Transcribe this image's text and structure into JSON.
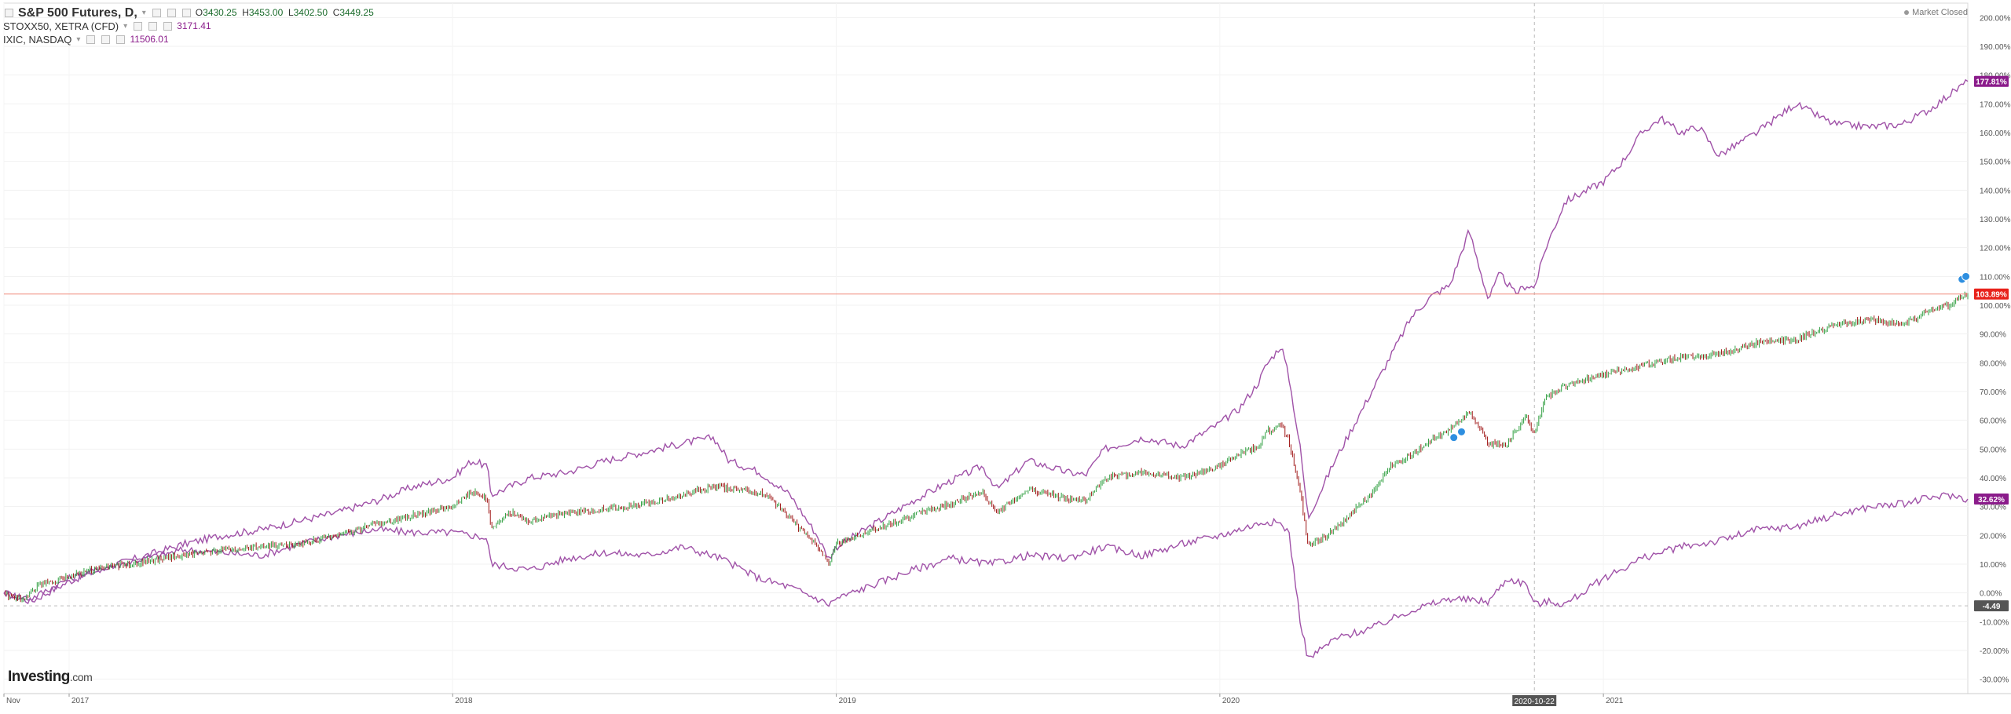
{
  "legend": {
    "main": {
      "symbol": "S&P 500 Futures, D,",
      "open_label": "O",
      "open": "3430.25",
      "high_label": "H",
      "high": "3453.00",
      "low_label": "L",
      "low": "3402.50",
      "close_label": "C",
      "close": "3449.25"
    },
    "comparisons": [
      {
        "symbol": "STOXX50, XETRA (CFD)",
        "value": "3171.41"
      },
      {
        "symbol": "IXIC, NASDAQ",
        "value": "11506.01"
      }
    ]
  },
  "market_status": "Market Closed",
  "brand": {
    "name": "Investing",
    "suffix": ".com"
  },
  "badges": {
    "ixic": "177.81%",
    "spx": "103.89%",
    "stoxx": "32.62%",
    "crosshair_y": "-4.49",
    "crosshair_x": "2020-10-22"
  },
  "colors": {
    "spx_up": "#2e9e3e",
    "spx_down": "#a01818",
    "compare": "#a052a8",
    "price_line": "#f08a7a",
    "badge_spx": "#e8221b",
    "badge_compare": "#8b1c8b"
  },
  "chart_data": {
    "type": "line",
    "yaxis_unit": "%",
    "ylim": [
      -35,
      205
    ],
    "ytick_labels": [
      "200.00%",
      "190.00%",
      "180.00%",
      "170.00%",
      "160.00%",
      "150.00%",
      "140.00%",
      "130.00%",
      "120.00%",
      "110.00%",
      "100.00%",
      "90.00%",
      "80.00%",
      "70.00%",
      "60.00%",
      "50.00%",
      "40.00%",
      "30.00%",
      "20.00%",
      "10.00%",
      "0.00%",
      "-10.00%",
      "-20.00%",
      "-30.00%"
    ],
    "ytick_values": [
      200,
      190,
      180,
      170,
      160,
      150,
      140,
      130,
      120,
      110,
      100,
      90,
      80,
      70,
      60,
      50,
      40,
      30,
      20,
      10,
      0,
      -10,
      -20,
      -30
    ],
    "xtick_labels": [
      {
        "label": "Nov",
        "x": 2016.83
      },
      {
        "label": "2017",
        "x": 2017.0
      },
      {
        "label": "2018",
        "x": 2018.0
      },
      {
        "label": "2019",
        "x": 2019.0
      },
      {
        "label": "2020",
        "x": 2020.0
      },
      {
        "label": "2021",
        "x": 2021.0
      }
    ],
    "xlim": [
      2016.83,
      2021.95
    ],
    "series": [
      {
        "label": "S&P 500 Futures",
        "style": "candles",
        "x": [
          2016.83,
          2016.88,
          2016.92,
          2016.96,
          2017.0,
          2017.1,
          2017.2,
          2017.3,
          2017.4,
          2017.5,
          2017.6,
          2017.7,
          2017.8,
          2017.9,
          2018.0,
          2018.05,
          2018.09,
          2018.1,
          2018.15,
          2018.2,
          2018.3,
          2018.4,
          2018.5,
          2018.6,
          2018.68,
          2018.75,
          2018.82,
          2018.88,
          2018.95,
          2018.98,
          2019.0,
          2019.1,
          2019.2,
          2019.3,
          2019.38,
          2019.42,
          2019.5,
          2019.6,
          2019.65,
          2019.7,
          2019.8,
          2019.9,
          2020.0,
          2020.05,
          2020.1,
          2020.12,
          2020.16,
          2020.18,
          2020.21,
          2020.23,
          2020.3,
          2020.4,
          2020.45,
          2020.5,
          2020.55,
          2020.6,
          2020.65,
          2020.7,
          2020.75,
          2020.8,
          2020.82,
          2020.85,
          2020.9,
          2021.0,
          2021.1,
          2021.2,
          2021.3,
          2021.4,
          2021.5,
          2021.6,
          2021.7,
          2021.78,
          2021.85,
          2021.9,
          2021.95
        ],
        "y": [
          0,
          -3,
          3,
          4,
          6,
          9,
          11,
          13,
          15,
          16,
          17,
          20,
          24,
          27,
          30,
          35,
          33,
          22,
          28,
          25,
          28,
          29,
          31,
          34,
          37,
          36,
          34,
          26,
          16,
          10,
          17,
          22,
          27,
          31,
          35,
          28,
          36,
          33,
          32,
          40,
          42,
          40,
          44,
          48,
          51,
          56,
          58,
          53,
          35,
          16,
          22,
          35,
          45,
          48,
          53,
          57,
          63,
          52,
          52,
          62,
          55,
          68,
          72,
          76,
          79,
          82,
          83,
          87,
          88,
          93,
          95,
          93,
          98,
          100,
          103.89
        ]
      },
      {
        "label": "IXIC",
        "style": "line",
        "x": [
          2016.83,
          2016.9,
          2017.0,
          2017.1,
          2017.2,
          2017.3,
          2017.4,
          2017.5,
          2017.6,
          2017.7,
          2017.8,
          2017.9,
          2018.0,
          2018.05,
          2018.09,
          2018.1,
          2018.2,
          2018.3,
          2018.4,
          2018.5,
          2018.6,
          2018.68,
          2018.72,
          2018.8,
          2018.88,
          2018.95,
          2018.98,
          2019.0,
          2019.1,
          2019.2,
          2019.3,
          2019.38,
          2019.42,
          2019.5,
          2019.6,
          2019.65,
          2019.7,
          2019.8,
          2019.9,
          2020.0,
          2020.05,
          2020.1,
          2020.12,
          2020.16,
          2020.18,
          2020.21,
          2020.23,
          2020.3,
          2020.4,
          2020.5,
          2020.55,
          2020.6,
          2020.65,
          2020.7,
          2020.73,
          2020.77,
          2020.8,
          2020.82,
          2020.85,
          2020.9,
          2021.0,
          2021.05,
          2021.1,
          2021.15,
          2021.2,
          2021.25,
          2021.3,
          2021.4,
          2021.5,
          2021.6,
          2021.7,
          2021.78,
          2021.85,
          2021.9,
          2021.95
        ],
        "y": [
          0,
          -3,
          4,
          9,
          13,
          17,
          20,
          22,
          25,
          28,
          32,
          37,
          40,
          46,
          44,
          34,
          40,
          42,
          46,
          49,
          52,
          54,
          46,
          42,
          34,
          20,
          12,
          16,
          24,
          32,
          39,
          44,
          36,
          46,
          42,
          41,
          50,
          54,
          51,
          59,
          64,
          73,
          79,
          86,
          75,
          50,
          26,
          46,
          71,
          96,
          103,
          107,
          126,
          102,
          111,
          104,
          107,
          106,
          120,
          136,
          143,
          150,
          160,
          165,
          160,
          162,
          152,
          160,
          170,
          163,
          162,
          163,
          168,
          173,
          177.81
        ]
      },
      {
        "label": "STOXX50",
        "style": "line",
        "x": [
          2016.83,
          2016.9,
          2017.0,
          2017.1,
          2017.2,
          2017.3,
          2017.4,
          2017.5,
          2017.6,
          2017.7,
          2017.8,
          2017.9,
          2018.0,
          2018.05,
          2018.09,
          2018.1,
          2018.2,
          2018.3,
          2018.4,
          2018.5,
          2018.6,
          2018.7,
          2018.8,
          2018.88,
          2018.95,
          2018.98,
          2019.0,
          2019.1,
          2019.2,
          2019.3,
          2019.4,
          2019.5,
          2019.6,
          2019.7,
          2019.8,
          2019.9,
          2020.0,
          2020.05,
          2020.1,
          2020.12,
          2020.16,
          2020.18,
          2020.21,
          2020.23,
          2020.3,
          2020.4,
          2020.5,
          2020.6,
          2020.7,
          2020.75,
          2020.8,
          2020.82,
          2020.86,
          2020.9,
          2021.0,
          2021.1,
          2021.2,
          2021.3,
          2021.4,
          2021.5,
          2021.6,
          2021.7,
          2021.78,
          2021.85,
          2021.9,
          2021.95
        ],
        "y": [
          0,
          -2,
          5,
          9,
          12,
          15,
          14,
          13,
          17,
          20,
          22,
          21,
          21,
          20,
          19,
          10,
          8,
          12,
          14,
          13,
          16,
          12,
          5,
          2,
          -2,
          -4,
          -2,
          3,
          8,
          12,
          10,
          13,
          12,
          16,
          13,
          17,
          20,
          22,
          24,
          25,
          24,
          21,
          -10,
          -23,
          -16,
          -12,
          -6,
          -2,
          -3,
          5,
          3,
          -4,
          -3,
          -4,
          5,
          12,
          16,
          18,
          22,
          23,
          27,
          30,
          31,
          33,
          34,
          32.62
        ]
      }
    ]
  }
}
